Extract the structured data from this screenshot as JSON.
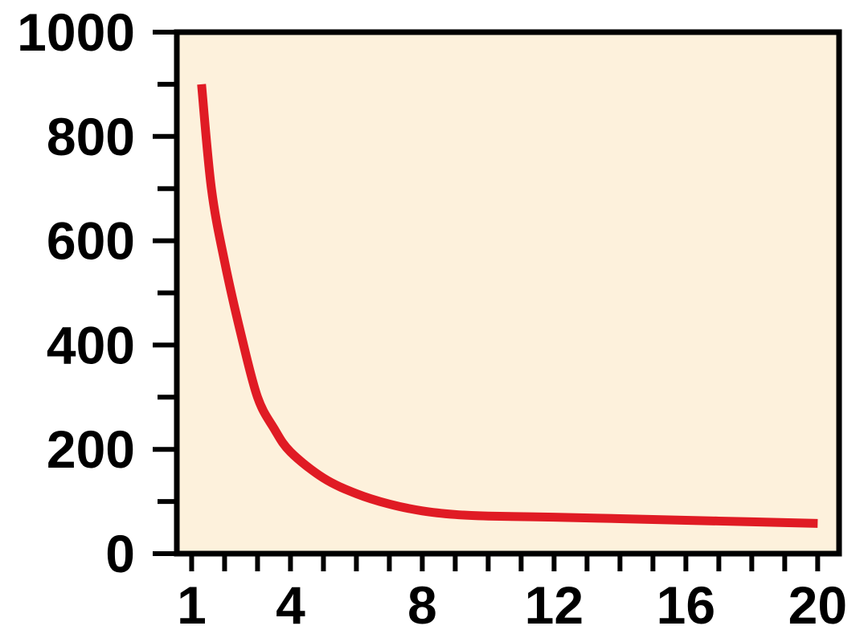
{
  "chart_data": {
    "type": "line",
    "title": "",
    "xlabel": "",
    "ylabel": "",
    "xlim": [
      0.55,
      20.65
    ],
    "ylim": [
      0,
      1000
    ],
    "grid": false,
    "x_ticks": [
      {
        "value": 1,
        "label": "1"
      },
      {
        "value": 4,
        "label": "4"
      },
      {
        "value": 8,
        "label": "8"
      },
      {
        "value": 12,
        "label": "12"
      },
      {
        "value": 16,
        "label": "16"
      },
      {
        "value": 20,
        "label": "20"
      }
    ],
    "y_ticks": [
      {
        "value": 0,
        "label": "0"
      },
      {
        "value": 200,
        "label": "200"
      },
      {
        "value": 400,
        "label": "400"
      },
      {
        "value": 600,
        "label": "600"
      },
      {
        "value": 800,
        "label": "800"
      },
      {
        "value": 1000,
        "label": "1000"
      }
    ],
    "series": [
      {
        "color": "#e01b24",
        "x": [
          1.3,
          1.6,
          2,
          2.5,
          3,
          3.5,
          4,
          5,
          6,
          7,
          8,
          9,
          10,
          12,
          14,
          16,
          18,
          20
        ],
        "y": [
          900,
          700,
          560,
          420,
          300,
          240,
          195,
          145,
          115,
          95,
          82,
          75,
          72,
          70,
          67,
          64,
          61,
          58
        ]
      }
    ]
  },
  "colors": {
    "plot_background": "#fdf1dc",
    "axis": "#000000",
    "line": "#e01b24"
  }
}
